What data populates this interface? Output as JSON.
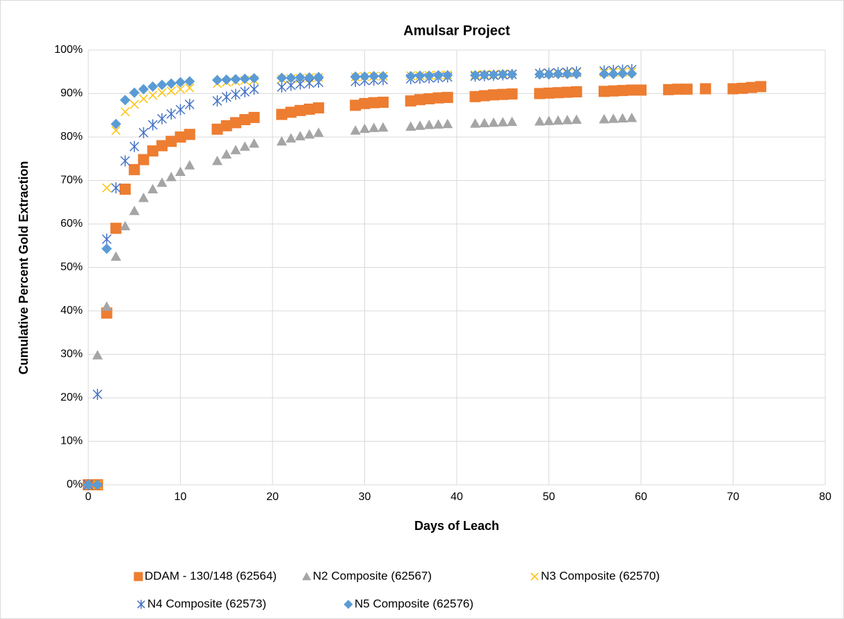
{
  "chart_data": {
    "type": "scatter",
    "title": "Amulsar Project",
    "x_label": "Days of Leach",
    "y_label": "Cumulative Percent Gold Extraction",
    "xlim": [
      0,
      80
    ],
    "xticks": [
      0,
      10,
      20,
      30,
      40,
      50,
      60,
      70,
      80
    ],
    "ylim": [
      0,
      100
    ],
    "yticks": [
      {
        "value": 0,
        "label": "0%"
      },
      {
        "value": 10,
        "label": "10%"
      },
      {
        "value": 20,
        "label": "20%"
      },
      {
        "value": 30,
        "label": "30%"
      },
      {
        "value": 40,
        "label": "40%"
      },
      {
        "value": 50,
        "label": "50%"
      },
      {
        "value": 60,
        "label": "60%"
      },
      {
        "value": 70,
        "label": "70%"
      },
      {
        "value": 80,
        "label": "80%"
      },
      {
        "value": 90,
        "label": "90%"
      },
      {
        "value": 100,
        "label": "100%"
      }
    ],
    "grid": true,
    "legend": "bottom",
    "series": [
      {
        "name": "DDAM - 130/148 (62564)",
        "color": "#ED7D31",
        "marker": "square",
        "x": [
          0,
          1,
          2,
          3,
          4,
          5,
          6,
          7,
          8,
          9,
          10,
          11,
          14,
          15,
          16,
          17,
          18,
          21,
          22,
          23,
          24,
          25,
          29,
          30,
          31,
          32,
          35,
          36,
          37,
          38,
          39,
          42,
          43,
          44,
          45,
          46,
          49,
          50,
          51,
          52,
          53,
          56,
          57,
          58,
          59,
          60,
          63,
          64,
          65,
          67,
          70,
          71,
          72,
          73
        ],
        "values": [
          0,
          0,
          39.5,
          59,
          68,
          72.5,
          74.8,
          76.8,
          78,
          79,
          80,
          80.6,
          81.8,
          82.6,
          83.3,
          84,
          84.5,
          85.2,
          85.7,
          86.1,
          86.4,
          86.7,
          87.3,
          87.7,
          87.9,
          88,
          88.3,
          88.6,
          88.8,
          89,
          89.1,
          89.3,
          89.5,
          89.7,
          89.8,
          89.9,
          90,
          90.1,
          90.2,
          90.3,
          90.4,
          90.5,
          90.6,
          90.7,
          90.8,
          90.8,
          90.9,
          91,
          91,
          91.1,
          91.1,
          91.2,
          91.4,
          91.6
        ]
      },
      {
        "name": "N2 Composite (62567)",
        "color": "#A5A5A5",
        "marker": "triangle",
        "x": [
          0,
          1,
          2,
          3,
          4,
          5,
          6,
          7,
          8,
          9,
          10,
          11,
          14,
          15,
          16,
          17,
          18,
          21,
          22,
          23,
          24,
          25,
          29,
          30,
          31,
          32,
          35,
          36,
          37,
          38,
          39,
          42,
          43,
          44,
          45,
          46,
          49,
          50,
          51,
          52,
          53,
          56,
          57,
          58,
          59
        ],
        "values": [
          0,
          29.8,
          41,
          52.5,
          59.5,
          63,
          66,
          68,
          69.5,
          70.8,
          72,
          73.5,
          74.5,
          76,
          77,
          77.8,
          78.5,
          79,
          79.7,
          80.2,
          80.6,
          81,
          81.5,
          81.9,
          82.1,
          82.2,
          82.4,
          82.6,
          82.8,
          82.9,
          83,
          83.1,
          83.2,
          83.3,
          83.4,
          83.5,
          83.6,
          83.7,
          83.8,
          83.9,
          84,
          84.1,
          84.2,
          84.3,
          84.4
        ]
      },
      {
        "name": "N3 Composite (62570)",
        "color": "#FFC000",
        "marker": "x",
        "x": [
          0,
          1,
          2,
          3,
          4,
          5,
          6,
          7,
          8,
          9,
          10,
          11,
          14,
          15,
          16,
          17,
          18,
          21,
          22,
          23,
          24,
          25,
          29,
          30,
          31,
          32,
          35,
          36,
          37,
          38,
          39,
          42,
          43,
          44,
          45,
          46,
          49,
          50,
          51,
          52,
          53,
          56,
          57,
          58,
          59
        ],
        "values": [
          0,
          0,
          68.3,
          81.5,
          85.8,
          87.5,
          88.8,
          89.6,
          90.2,
          90.6,
          91,
          91.3,
          92.3,
          92.6,
          92.8,
          93,
          93.1,
          93.3,
          93.4,
          93.5,
          93.6,
          93.7,
          93.8,
          93.9,
          94,
          94,
          94.1,
          94.1,
          94.2,
          94.2,
          94.3,
          94.3,
          94.4,
          94.4,
          94.5,
          94.5,
          94.6,
          94.6,
          94.7,
          94.7,
          94.8,
          94.8,
          94.9,
          94.9,
          95
        ]
      },
      {
        "name": "N4 Composite (62573)",
        "color": "#4472C4",
        "marker": "star",
        "x": [
          0,
          1,
          2,
          3,
          4,
          5,
          6,
          7,
          8,
          9,
          10,
          11,
          14,
          15,
          16,
          17,
          18,
          21,
          22,
          23,
          24,
          25,
          29,
          30,
          31,
          32,
          35,
          36,
          37,
          38,
          39,
          42,
          43,
          44,
          45,
          46,
          49,
          50,
          51,
          52,
          53,
          56,
          57,
          58,
          59
        ],
        "values": [
          0,
          20.8,
          56.5,
          68.3,
          74.5,
          77.8,
          81,
          82.8,
          84.2,
          85.3,
          86.3,
          87.5,
          88.3,
          89.2,
          89.8,
          90.4,
          91,
          91.5,
          91.9,
          92.2,
          92.4,
          92.6,
          92.8,
          93,
          93.1,
          93.2,
          93.4,
          93.5,
          93.6,
          93.7,
          93.8,
          94,
          94.1,
          94.2,
          94.3,
          94.4,
          94.6,
          94.7,
          94.8,
          94.9,
          95,
          95.2,
          95.3,
          95.4,
          95.5
        ]
      },
      {
        "name": "N5 Composite (62576)",
        "color": "#5B9BD5",
        "marker": "diamond",
        "x": [
          0,
          1,
          2,
          3,
          4,
          5,
          6,
          7,
          8,
          9,
          10,
          11,
          14,
          15,
          16,
          17,
          18,
          21,
          22,
          23,
          24,
          25,
          29,
          30,
          31,
          32,
          35,
          36,
          37,
          38,
          39,
          42,
          43,
          44,
          45,
          46,
          49,
          50,
          51,
          52,
          53,
          56,
          57,
          58,
          59
        ],
        "values": [
          0,
          0,
          54.3,
          83,
          88.5,
          90.2,
          91,
          91.6,
          92,
          92.3,
          92.6,
          92.8,
          93.1,
          93.2,
          93.3,
          93.4,
          93.5,
          93.6,
          93.6,
          93.7,
          93.7,
          93.8,
          93.9,
          93.9,
          94,
          94,
          94,
          94.1,
          94.1,
          94.2,
          94.2,
          94.2,
          94.3,
          94.3,
          94.4,
          94.4,
          94.4,
          94.4,
          94.5,
          94.5,
          94.5,
          94.5,
          94.5,
          94.6,
          94.6
        ]
      }
    ]
  }
}
